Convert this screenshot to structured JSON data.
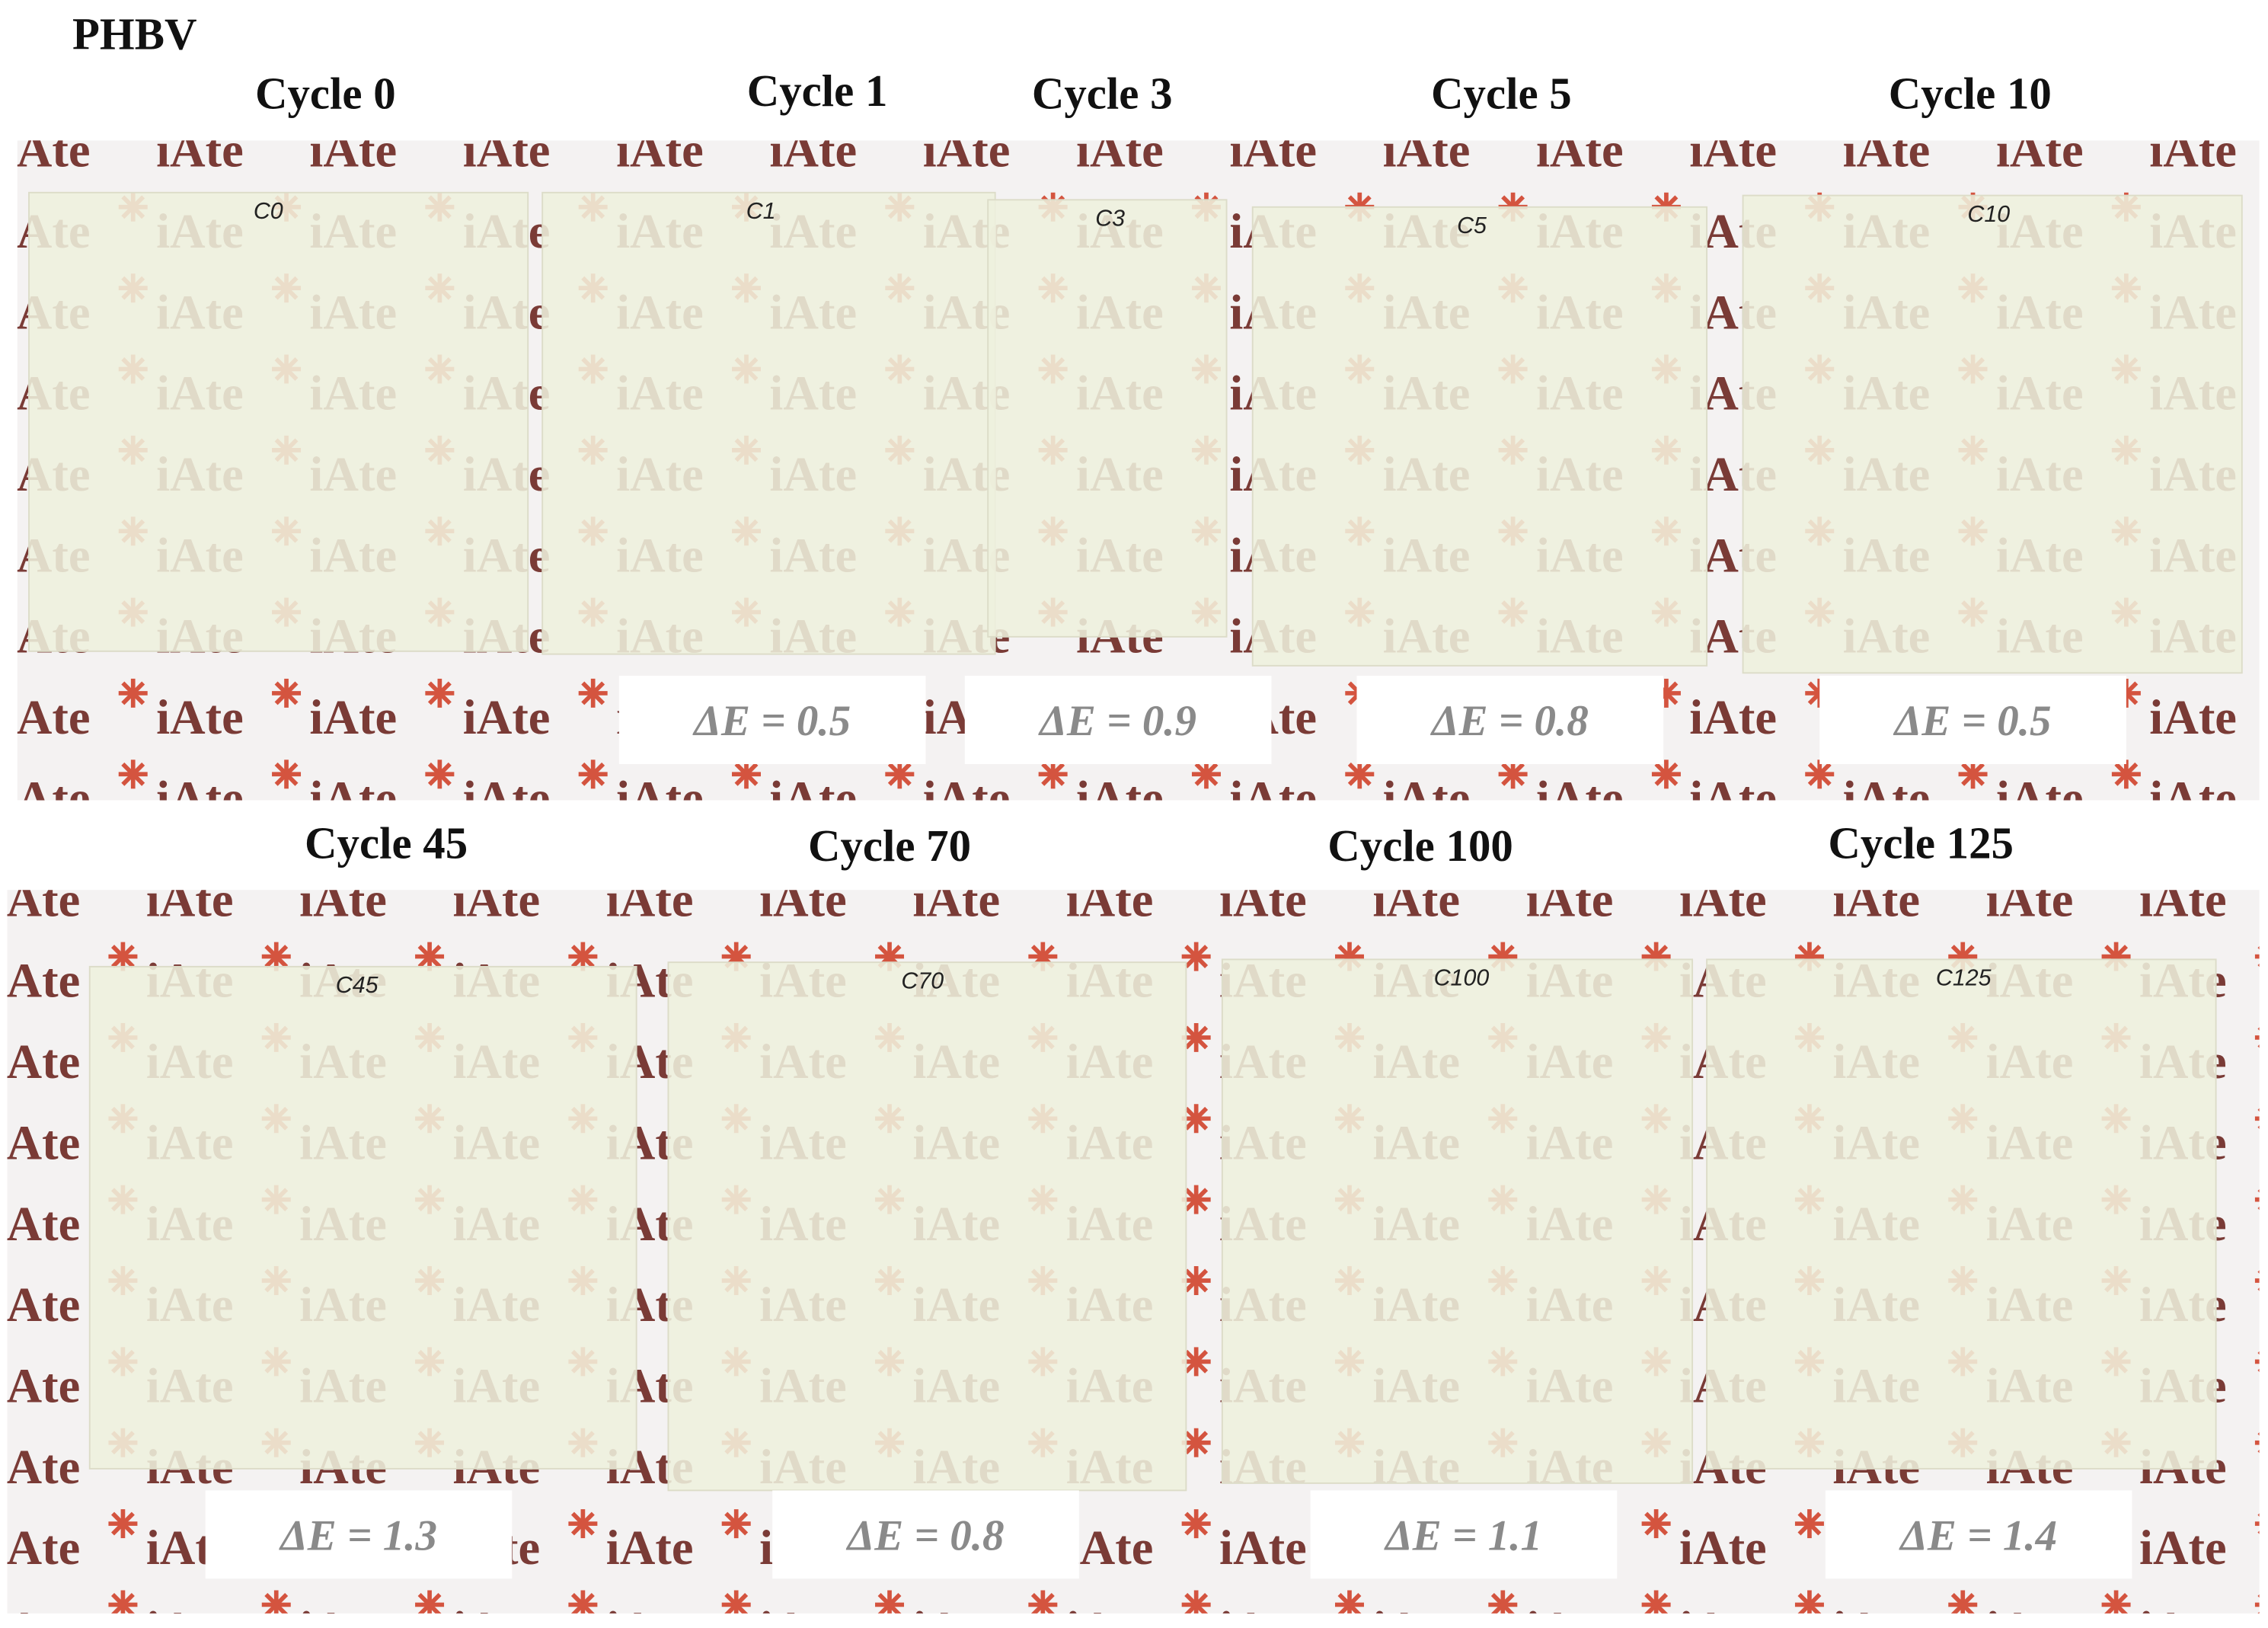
{
  "title": "PHBV",
  "background_text": "iAte",
  "panels": [
    {
      "label": "Cycle 0",
      "sample_mark": "C0"
    },
    {
      "label": "Cycle 1",
      "sample_mark": "C1",
      "delta_e": "ΔE = 0.5"
    },
    {
      "label": "Cycle 3",
      "sample_mark": "C3",
      "delta_e": "ΔE = 0.9"
    },
    {
      "label": "Cycle 5",
      "sample_mark": "C5",
      "delta_e": "ΔE = 0.8"
    },
    {
      "label": "Cycle 10",
      "sample_mark": "C10",
      "delta_e": "ΔE = 0.5"
    },
    {
      "label": "Cycle 45",
      "sample_mark": "C45",
      "delta_e": "ΔE = 1.3"
    },
    {
      "label": "Cycle 70",
      "sample_mark": "C70",
      "delta_e": "ΔE = 0.8"
    },
    {
      "label": "Cycle 100",
      "sample_mark": "C100",
      "delta_e": "ΔE = 1.1"
    },
    {
      "label": "Cycle 125",
      "sample_mark": "C125",
      "delta_e": "ΔE = 1.4"
    }
  ]
}
